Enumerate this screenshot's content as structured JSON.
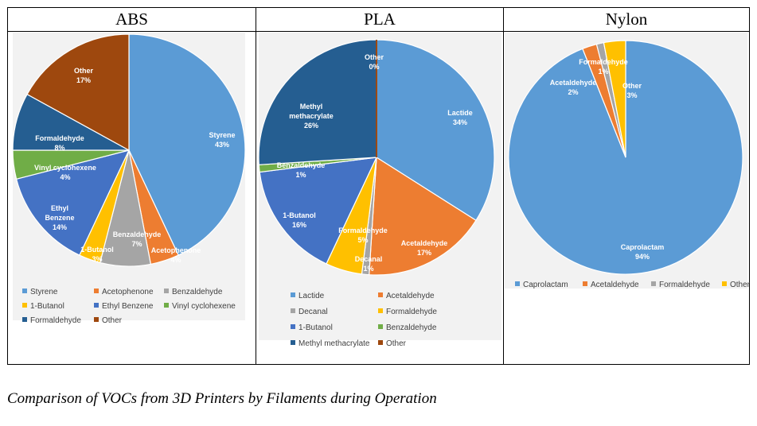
{
  "caption": "Comparison of VOCs from 3D Printers by Filaments during Operation",
  "colors": {
    "blue": "#5b9bd5",
    "orange": "#ed7d31",
    "gray": "#a5a5a5",
    "yellow": "#ffc000",
    "royal": "#4472c4",
    "green": "#70ad47",
    "navy": "#255e91",
    "brown": "#9e480e",
    "panel_bg": "#f2f2f2",
    "label_text": "#ffffff",
    "legend_text": "#404040"
  },
  "chart_data": [
    {
      "type": "pie",
      "title": "ABS",
      "slices": [
        {
          "name": "Styrene",
          "value": 43,
          "label_lines": [
            "Styrene",
            "43%"
          ],
          "color": "#5b9bd5"
        },
        {
          "name": "Acetophenone",
          "value": 4,
          "label_lines": [
            "Acetophenone",
            "4%"
          ],
          "color": "#ed7d31"
        },
        {
          "name": "Benzaldehyde",
          "value": 7,
          "label_lines": [
            "Benzaldehyde",
            "7%"
          ],
          "color": "#a5a5a5"
        },
        {
          "name": "1-Butanol",
          "value": 3,
          "label_lines": [
            "1-Butanol",
            "3%"
          ],
          "color": "#ffc000"
        },
        {
          "name": "Ethyl Benzene",
          "value": 14,
          "label_lines": [
            "Ethyl",
            "Benzene",
            "14%"
          ],
          "color": "#4472c4"
        },
        {
          "name": "Vinyl cyclohexene",
          "value": 4,
          "label_lines": [
            "Vinyl cyclohexene",
            "4%"
          ],
          "color": "#70ad47"
        },
        {
          "name": "Formaldehyde",
          "value": 8,
          "label_lines": [
            "Formaldehyde",
            "8%"
          ],
          "color": "#255e91"
        },
        {
          "name": "Other",
          "value": 17,
          "label_lines": [
            "Other",
            "17%"
          ],
          "color": "#9e480e"
        }
      ],
      "legend": [
        "Styrene",
        "Acetophenone",
        "Benzaldehyde",
        "1-Butanol",
        "Ethyl Benzene",
        "Vinyl cyclohexene",
        "Formaldehyde",
        "Other"
      ],
      "legend_placement": "bottom"
    },
    {
      "type": "pie",
      "title": "PLA",
      "slices": [
        {
          "name": "Lactide",
          "value": 34,
          "label_lines": [
            "Lactide",
            "34%"
          ],
          "color": "#5b9bd5"
        },
        {
          "name": "Acetaldehyde",
          "value": 17,
          "label_lines": [
            "Acetaldehyde",
            "17%"
          ],
          "color": "#ed7d31"
        },
        {
          "name": "Decanal",
          "value": 1,
          "label_lines": [
            "Decanal",
            "1%"
          ],
          "color": "#a5a5a5"
        },
        {
          "name": "Formaldehyde",
          "value": 5,
          "label_lines": [
            "Formaldehyde",
            "5%"
          ],
          "color": "#ffc000"
        },
        {
          "name": "1-Butanol",
          "value": 16,
          "label_lines": [
            "1-Butanol",
            "16%"
          ],
          "color": "#4472c4"
        },
        {
          "name": "Benzaldehyde",
          "value": 1,
          "label_lines": [
            "Benzaldehyde",
            "1%"
          ],
          "color": "#70ad47"
        },
        {
          "name": "Methyl methacrylate",
          "value": 26,
          "label_lines": [
            "Methyl",
            "methacrylate",
            "26%"
          ],
          "color": "#255e91"
        },
        {
          "name": "Other",
          "value": 0,
          "label_lines": [
            "Other",
            "0%"
          ],
          "color": "#9e480e"
        }
      ],
      "legend": [
        "Lactide",
        "Acetaldehyde",
        "Decanal",
        "Formaldehyde",
        "1-Butanol",
        "Benzaldehyde",
        "Methyl methacrylate",
        "Other"
      ],
      "legend_placement": "bottom"
    },
    {
      "type": "pie",
      "title": "Nylon",
      "slices": [
        {
          "name": "Caprolactam",
          "value": 94,
          "label_lines": [
            "Caprolactam",
            "94%"
          ],
          "color": "#5b9bd5"
        },
        {
          "name": "Acetaldehyde",
          "value": 2,
          "label_lines": [
            "Acetaldehyde",
            "2%"
          ],
          "color": "#ed7d31"
        },
        {
          "name": "Formaldehyde",
          "value": 1,
          "label_lines": [
            "Formaldehyde",
            "1%"
          ],
          "color": "#a5a5a5"
        },
        {
          "name": "Other",
          "value": 3,
          "label_lines": [
            "Other",
            "3%"
          ],
          "color": "#ffc000"
        }
      ],
      "legend": [
        "Caprolactam",
        "Acetaldehyde",
        "Formaldehyde",
        "Other"
      ],
      "legend_placement": "bottom"
    }
  ]
}
